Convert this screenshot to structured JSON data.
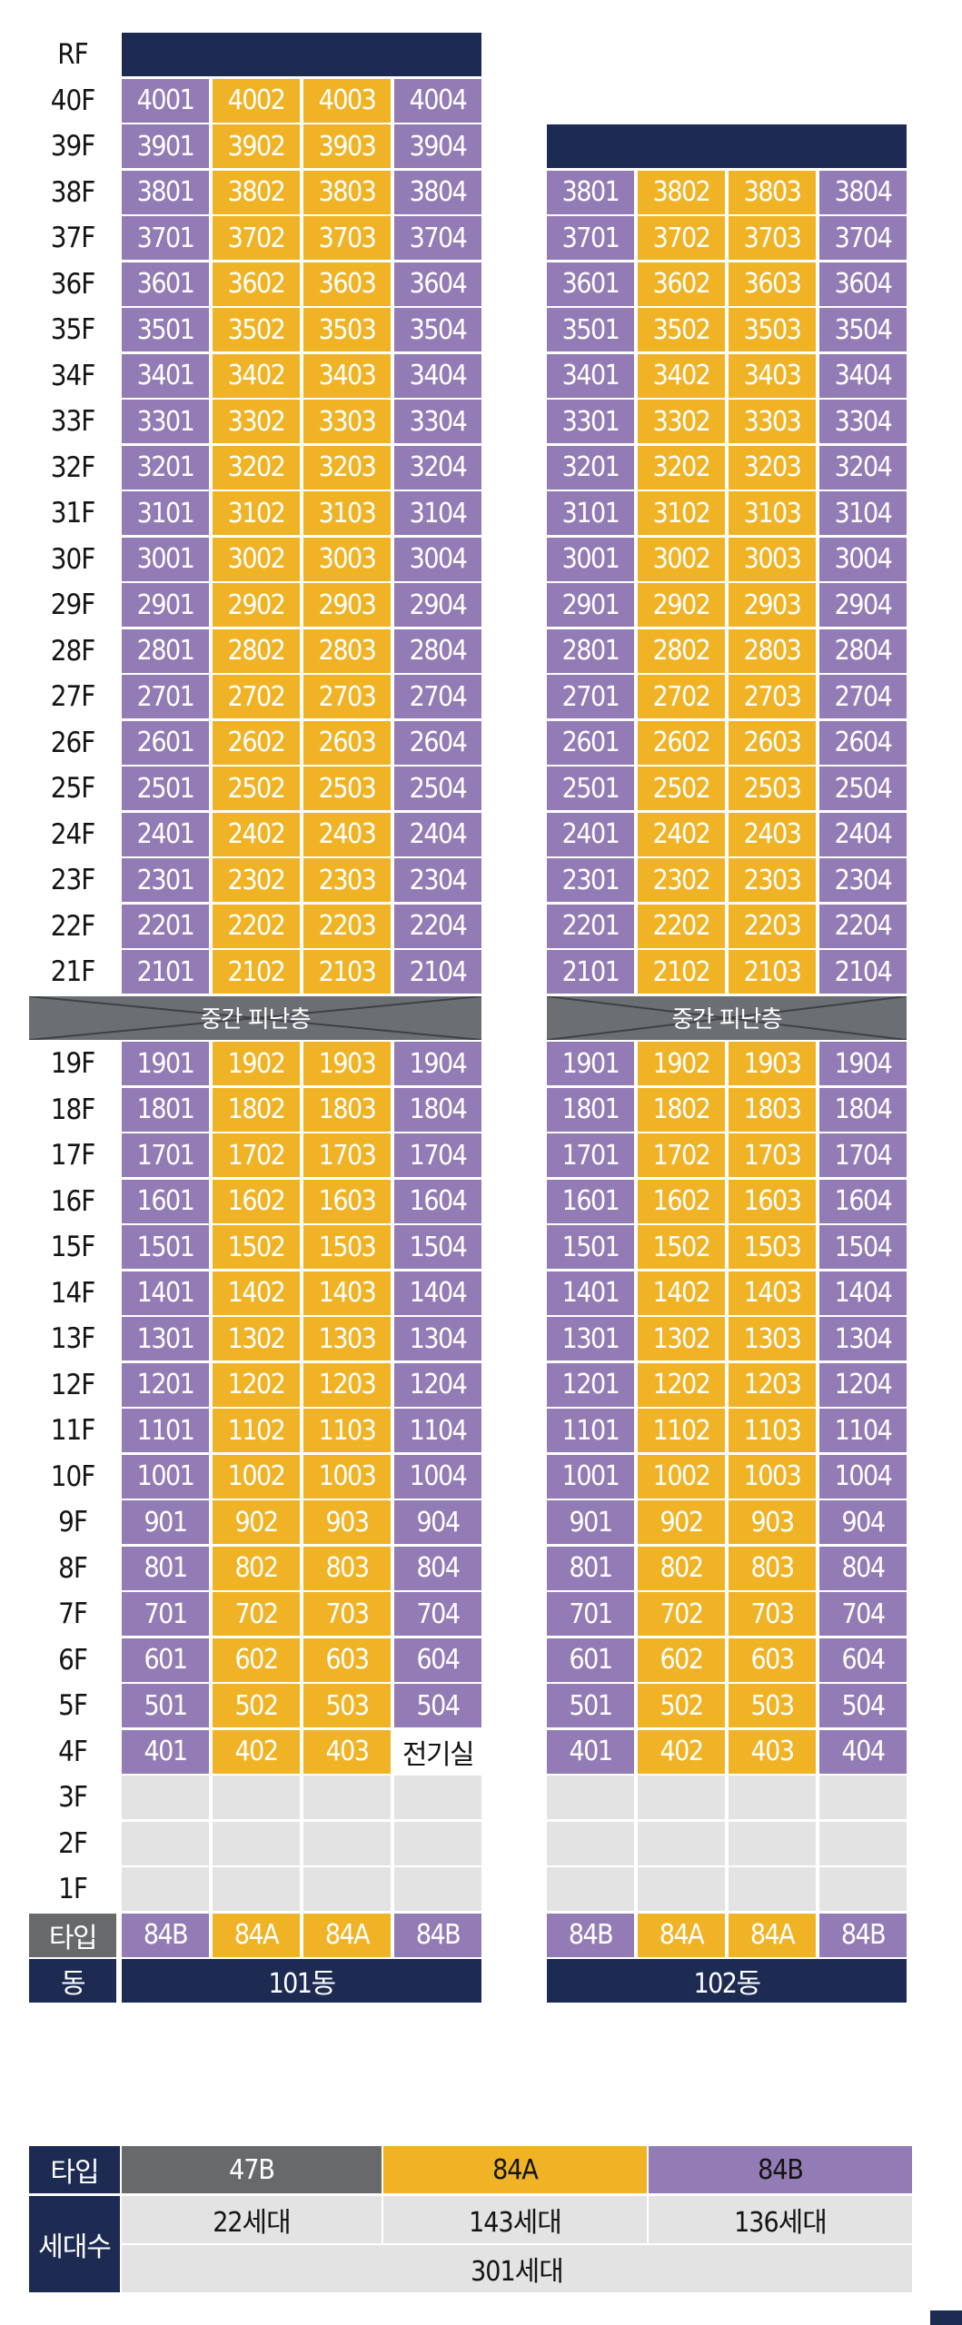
{
  "floors": [
    "RF",
    "40F",
    "39F",
    "38F",
    "37F",
    "36F",
    "35F",
    "34F",
    "33F",
    "32F",
    "31F",
    "30F",
    "29F",
    "28F",
    "27F",
    "26F",
    "25F",
    "24F",
    "23F",
    "22F",
    "21F",
    "REFUGE",
    "19F",
    "18F",
    "17F",
    "16F",
    "15F",
    "14F",
    "13F",
    "12F",
    "11F",
    "10F",
    "9F",
    "8F",
    "7F",
    "6F",
    "5F",
    "4F",
    "3F",
    "2F",
    "1F"
  ],
  "refuge_label": "중간 피난층",
  "type_row_label": "타입",
  "building_row_label": "동",
  "buildings": [
    {
      "name": "101동",
      "types": [
        "84B",
        "84A",
        "84A",
        "84B"
      ],
      "top_floor": 40,
      "special_units": {
        "4F-4": "전기실"
      }
    },
    {
      "name": "102동",
      "types": [
        "84B",
        "84A",
        "84A",
        "84B"
      ],
      "top_floor": 38,
      "special_units": {}
    }
  ],
  "legend": {
    "type_label": "타입",
    "households_label": "세대수",
    "types": [
      {
        "name": "47B",
        "count": "22세대",
        "color": "#67696b"
      },
      {
        "name": "84A",
        "count": "143세대",
        "color": "#efb325"
      },
      {
        "name": "84B",
        "count": "136세대",
        "color": "#937cb5"
      }
    ],
    "total": "301세대"
  },
  "colors": {
    "84A": "#efb325",
    "84B": "#937cb5",
    "header": "#1d2b53",
    "empty": "#e3e3e3",
    "refuge": "#6b6e72"
  }
}
